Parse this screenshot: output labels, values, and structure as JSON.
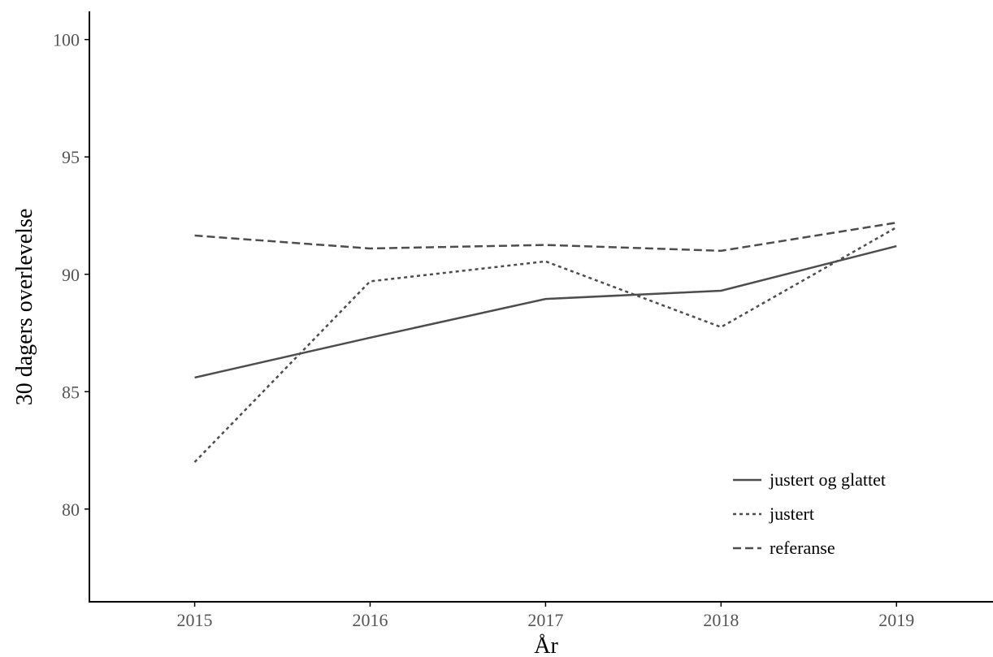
{
  "chart_data": {
    "type": "line",
    "title": "",
    "xlabel": "År",
    "ylabel": "30 dagers overlevelse",
    "x": [
      2015,
      2016,
      2017,
      2018,
      2019
    ],
    "xlim": [
      2014.4,
      2019.55
    ],
    "ylim": [
      76.05,
      101.2
    ],
    "yticks": [
      80,
      85,
      90,
      95,
      100
    ],
    "grid": false,
    "legend_position": "bottom-right",
    "series": [
      {
        "name": "justert og glattet",
        "style": "solid",
        "values": [
          85.6,
          87.3,
          88.95,
          89.3,
          91.2
        ]
      },
      {
        "name": "justert",
        "style": "dotted",
        "values": [
          82.0,
          89.7,
          90.55,
          87.75,
          92.0
        ]
      },
      {
        "name": "referanse",
        "style": "dashed",
        "values": [
          91.65,
          91.1,
          91.25,
          91.0,
          92.2
        ]
      }
    ],
    "colors": {
      "line": "#4d4d4d",
      "axis": "#000000",
      "tick_label": "#555555"
    }
  }
}
